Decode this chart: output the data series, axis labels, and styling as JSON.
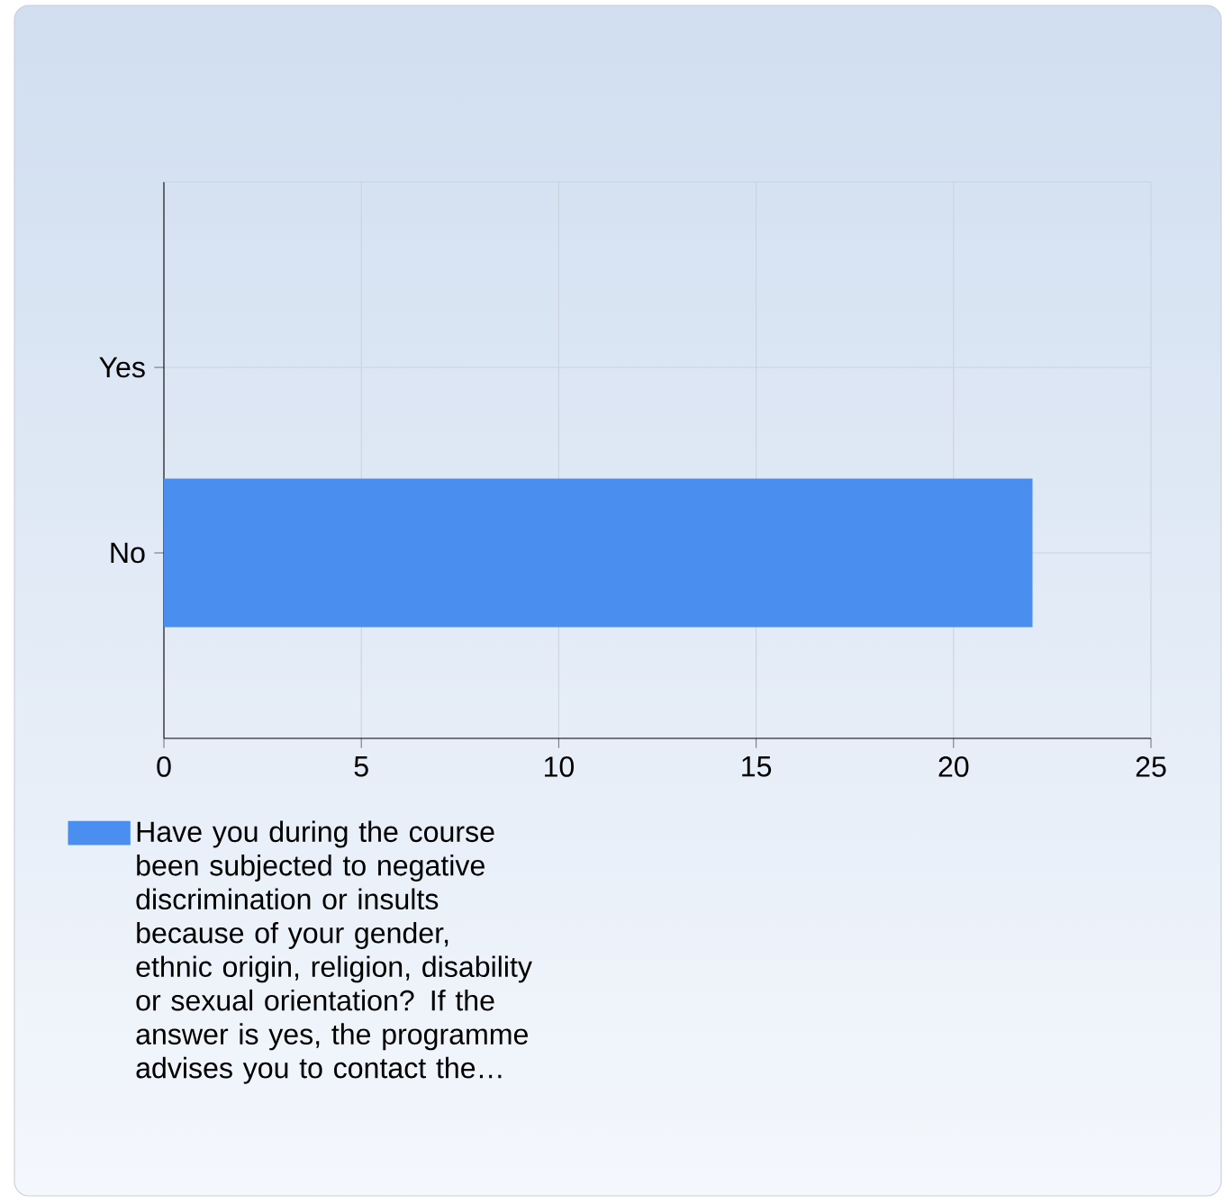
{
  "chart_data": {
    "type": "bar",
    "orientation": "horizontal",
    "categories": [
      "Yes",
      "No"
    ],
    "series": [
      {
        "name": "Have you during the course been subjected to negative discrimination or insults because of your gender, ethnic origin, religion, disability or sexual orientation? If the answer is yes, the programme advises you to contact the…",
        "color": "#4a8ff0",
        "values": [
          0,
          22
        ]
      }
    ],
    "xlim": [
      0,
      25
    ],
    "xticks": [
      0,
      5,
      10,
      15,
      20,
      25
    ],
    "grid": true,
    "legend": "bottom left"
  }
}
